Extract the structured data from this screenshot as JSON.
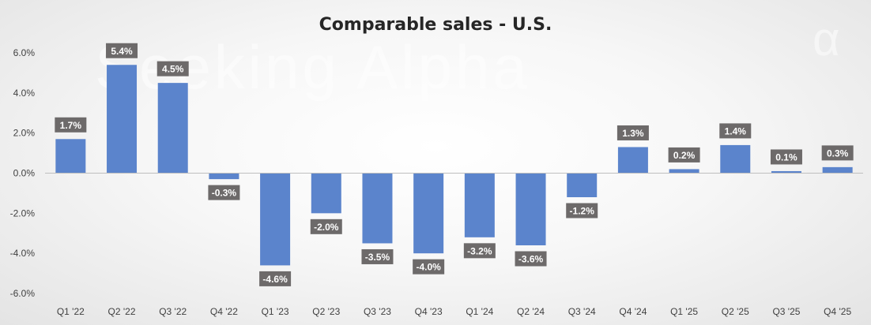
{
  "watermark": "Seeking Alpha",
  "watermark_symbol": "α",
  "chart_data": {
    "type": "bar",
    "title": "Comparable sales - U.S.",
    "xlabel": "",
    "ylabel": "",
    "categories": [
      "Q1 '22",
      "Q2 '22",
      "Q3 '22",
      "Q4 '22",
      "Q1 '23",
      "Q2 '23",
      "Q3 '23",
      "Q4 '23",
      "Q1 '24",
      "Q2 '24",
      "Q3 '24",
      "Q4 '24",
      "Q1 '25",
      "Q2 '25",
      "Q3 '25",
      "Q4 '25"
    ],
    "values": [
      1.7,
      5.4,
      4.5,
      -0.3,
      -4.6,
      -2.0,
      -3.5,
      -4.0,
      -3.2,
      -3.6,
      -1.2,
      1.3,
      0.2,
      1.4,
      0.1,
      0.3
    ],
    "data_labels": [
      "1.7%",
      "5.4%",
      "4.5%",
      "-0.3%",
      "-4.6%",
      "-2.0%",
      "-3.5%",
      "-4.0%",
      "-3.2%",
      "-3.6%",
      "-1.2%",
      "1.3%",
      "0.2%",
      "1.4%",
      "0.1%",
      "0.3%"
    ],
    "y_ticks": [
      6,
      4,
      2,
      0,
      -2,
      -4,
      -6
    ],
    "y_tick_labels": [
      "6.0%",
      "4.0%",
      "2.0%",
      "0.0%",
      "-2.0%",
      "-4.0%",
      "-6.0%"
    ],
    "ylim": [
      -6,
      6
    ],
    "grid": false,
    "legend": "none",
    "bar_color": "#5b84cc",
    "label_box_color": "#6d6a6a"
  }
}
